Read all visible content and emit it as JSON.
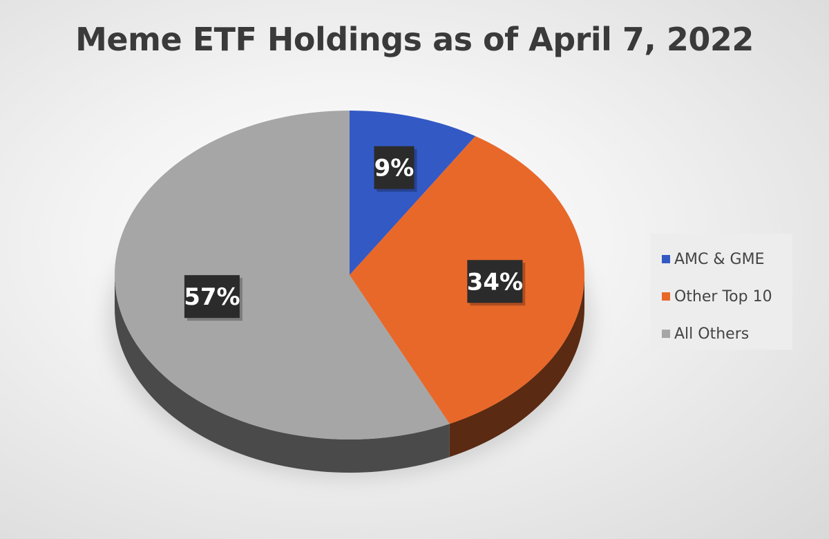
{
  "chart_data": {
    "type": "pie",
    "title": "Meme ETF Holdings as of April 7, 2022",
    "categories": [
      "AMC & GME",
      "Other Top 10",
      "All Others"
    ],
    "values": [
      9,
      34,
      57
    ],
    "data_labels": [
      "9%",
      "34%",
      "57%"
    ],
    "colors": [
      "#3359c4",
      "#e8682a",
      "#a6a6a6"
    ],
    "side_colors": [
      "#1f3a80",
      "#5a2a12",
      "#4a4a4a"
    ],
    "legend_position": "right",
    "style": "3d"
  }
}
